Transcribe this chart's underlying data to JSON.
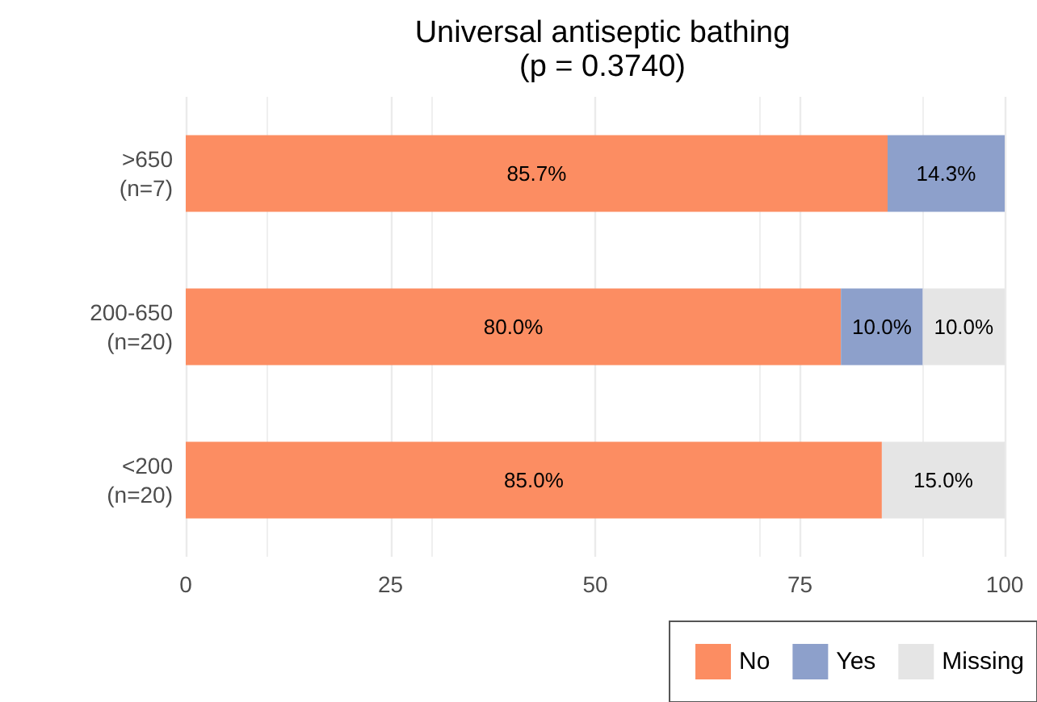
{
  "chart_data": {
    "type": "bar",
    "orientation": "horizontal",
    "stacked": true,
    "title": "Universal antiseptic bathing",
    "subtitle": "(p = 0.3740)",
    "categories": [
      ">650\n(n=7)",
      "200-650\n(n=20)",
      "<200\n(n=20)"
    ],
    "series": [
      {
        "name": "No",
        "color": "#fc8d62",
        "values": [
          85.7,
          80.0,
          85.0
        ],
        "value_labels": [
          "85.7%",
          "80.0%",
          "85.0%"
        ]
      },
      {
        "name": "Yes",
        "color": "#8da0cb",
        "values": [
          14.3,
          10.0,
          null
        ],
        "value_labels": [
          "14.3%",
          "10.0%",
          null
        ]
      },
      {
        "name": "Missing",
        "color": "#e5e5e5",
        "values": [
          null,
          10.0,
          15.0
        ],
        "value_labels": [
          null,
          "10.0%",
          "15.0%"
        ]
      }
    ],
    "xlim": [
      0,
      100
    ],
    "xticks": [
      0,
      25,
      50,
      75,
      100
    ],
    "grid": "x",
    "legend": "bottom right"
  }
}
